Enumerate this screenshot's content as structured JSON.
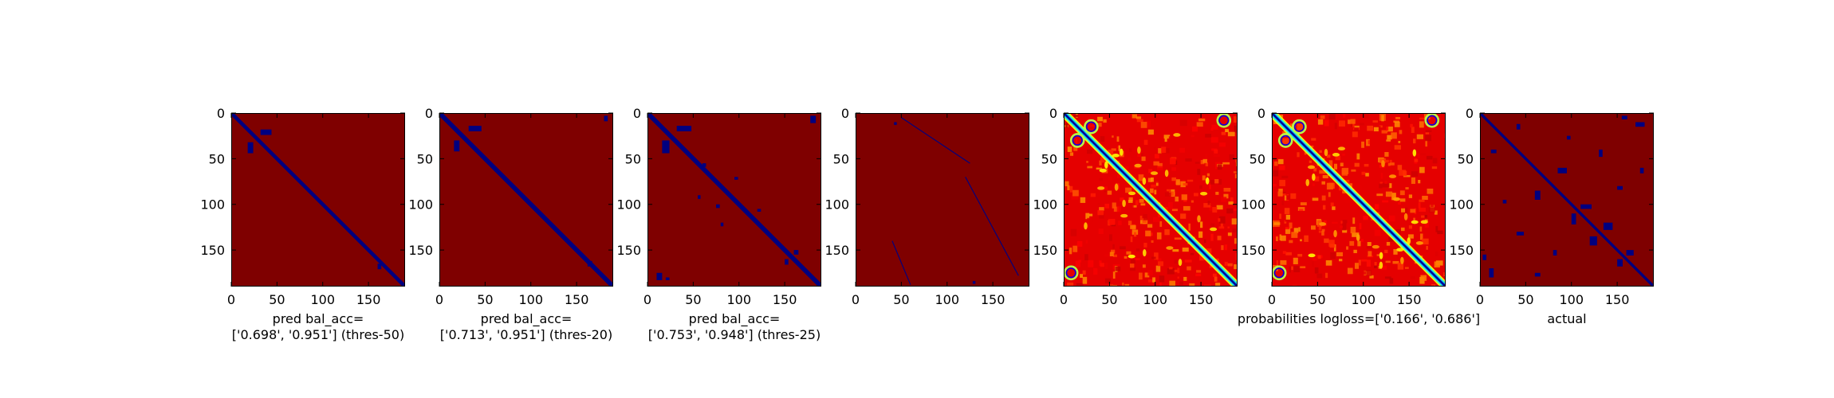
{
  "chart_data": [
    {
      "type": "heatmap",
      "variant": "binary-mask",
      "xlabel_lines": [
        "pred bal_acc=",
        "['0.698', '0.951'] (thres-50)"
      ],
      "xticks": [
        0,
        50,
        100,
        150
      ],
      "yticks": [
        0,
        50,
        100,
        150
      ],
      "xlim": [
        0,
        190
      ],
      "ylim": [
        190,
        0
      ],
      "background_color": "#7f0000",
      "mark_color": "#00007f",
      "diagonal_width": 4,
      "blobs": [
        {
          "i": 32,
          "j": 18,
          "w": 6,
          "h": 12
        },
        {
          "i": 18,
          "j": 32,
          "w": 12,
          "h": 6
        },
        {
          "i": 165,
          "j": 160,
          "w": 4,
          "h": 6
        }
      ]
    },
    {
      "type": "heatmap",
      "variant": "binary-mask",
      "xlabel_lines": [
        "pred bal_acc=",
        "['0.713', '0.951'] (thres-20)"
      ],
      "xticks": [
        0,
        50,
        100,
        150
      ],
      "yticks": [
        0,
        50,
        100,
        150
      ],
      "xlim": [
        0,
        190
      ],
      "ylim": [
        190,
        0
      ],
      "background_color": "#7f0000",
      "mark_color": "#00007f",
      "diagonal_width": 5,
      "blobs": [
        {
          "i": 30,
          "j": 16,
          "w": 6,
          "h": 12
        },
        {
          "i": 14,
          "j": 32,
          "w": 14,
          "h": 6
        },
        {
          "i": 3,
          "j": 180,
          "w": 4,
          "h": 6
        },
        {
          "i": 162,
          "j": 162,
          "w": 5,
          "h": 6
        }
      ]
    },
    {
      "type": "heatmap",
      "variant": "binary-mask",
      "xlabel_lines": [
        "pred bal_acc=",
        "['0.753', '0.948'] (thres-25)"
      ],
      "xticks": [
        0,
        50,
        100,
        150
      ],
      "yticks": [
        0,
        50,
        100,
        150
      ],
      "xlim": [
        0,
        190
      ],
      "ylim": [
        190,
        0
      ],
      "background_color": "#7f0000",
      "mark_color": "#00007f",
      "diagonal_width": 5,
      "blobs": [
        {
          "i": 30,
          "j": 16,
          "w": 8,
          "h": 14
        },
        {
          "i": 14,
          "j": 32,
          "w": 16,
          "h": 6
        },
        {
          "i": 3,
          "j": 178,
          "w": 6,
          "h": 8
        },
        {
          "i": 55,
          "j": 60,
          "w": 4,
          "h": 4
        },
        {
          "i": 70,
          "j": 95,
          "w": 4,
          "h": 3
        },
        {
          "i": 90,
          "j": 55,
          "w": 3,
          "h": 4
        },
        {
          "i": 100,
          "j": 75,
          "w": 4,
          "h": 4
        },
        {
          "i": 105,
          "j": 120,
          "w": 4,
          "h": 3
        },
        {
          "i": 120,
          "j": 80,
          "w": 3,
          "h": 4
        },
        {
          "i": 150,
          "j": 160,
          "w": 5,
          "h": 5
        },
        {
          "i": 160,
          "j": 150,
          "w": 4,
          "h": 6
        },
        {
          "i": 175,
          "j": 10,
          "w": 6,
          "h": 8
        },
        {
          "i": 180,
          "j": 20,
          "w": 4,
          "h": 3
        }
      ]
    },
    {
      "type": "heatmap",
      "variant": "binary-mask-sparse",
      "xlabel_lines": [],
      "xticks": [
        0,
        50,
        100,
        150
      ],
      "yticks": [
        0,
        50,
        100,
        150
      ],
      "xlim": [
        0,
        190
      ],
      "ylim": [
        190,
        0
      ],
      "background_color": "#7f0000",
      "mark_color": "#00007f",
      "diagonal_width": 0,
      "lines": [
        {
          "i1": 5,
          "j1": 50,
          "i2": 55,
          "j2": 125,
          "w": 1
        },
        {
          "i1": 70,
          "j1": 120,
          "i2": 178,
          "j2": 178,
          "w": 1
        },
        {
          "i1": 140,
          "j1": 40,
          "i2": 188,
          "j2": 60,
          "w": 1
        }
      ],
      "blobs": [
        {
          "i": 10,
          "j": 42,
          "w": 3,
          "h": 3
        },
        {
          "i": 184,
          "j": 128,
          "w": 3,
          "h": 3
        }
      ]
    },
    {
      "type": "heatmap",
      "variant": "probability",
      "xlabel_lines": [],
      "xticks": [
        0,
        50,
        100,
        150
      ],
      "yticks": [
        0,
        50,
        100,
        150
      ],
      "xlim": [
        0,
        190
      ],
      "ylim": [
        190,
        0
      ],
      "colormap": "jet",
      "diagonal_width": 3,
      "seed": 11
    },
    {
      "type": "heatmap",
      "variant": "probability",
      "xlabel_lines": [
        "probabilities logloss=['0.166', '0.686']"
      ],
      "xticks": [
        0,
        50,
        100,
        150
      ],
      "yticks": [
        0,
        50,
        100,
        150
      ],
      "xlim": [
        0,
        190
      ],
      "ylim": [
        190,
        0
      ],
      "colormap": "jet",
      "diagonal_width": 3,
      "seed": 23
    },
    {
      "type": "heatmap",
      "variant": "binary-mask",
      "xlabel_lines": [
        "actual"
      ],
      "xticks": [
        0,
        50,
        100,
        150
      ],
      "yticks": [
        0,
        50,
        100,
        150
      ],
      "xlim": [
        0,
        190
      ],
      "ylim": [
        190,
        0
      ],
      "background_color": "#7f0000",
      "mark_color": "#00007f",
      "diagonal_width": 3,
      "blobs": [
        {
          "i": 12,
          "j": 40,
          "w": 4,
          "h": 6
        },
        {
          "i": 40,
          "j": 12,
          "w": 6,
          "h": 4
        },
        {
          "i": 3,
          "j": 155,
          "w": 6,
          "h": 4
        },
        {
          "i": 155,
          "j": 3,
          "w": 4,
          "h": 6
        },
        {
          "i": 60,
          "j": 85,
          "w": 10,
          "h": 6
        },
        {
          "i": 85,
          "j": 60,
          "w": 6,
          "h": 10
        },
        {
          "i": 100,
          "j": 110,
          "w": 12,
          "h": 5
        },
        {
          "i": 110,
          "j": 100,
          "w": 5,
          "h": 12
        },
        {
          "i": 120,
          "j": 135,
          "w": 10,
          "h": 8
        },
        {
          "i": 135,
          "j": 120,
          "w": 8,
          "h": 10
        },
        {
          "i": 130,
          "j": 40,
          "w": 8,
          "h": 4
        },
        {
          "i": 40,
          "j": 130,
          "w": 4,
          "h": 8
        },
        {
          "i": 150,
          "j": 160,
          "w": 8,
          "h": 6
        },
        {
          "i": 160,
          "j": 150,
          "w": 6,
          "h": 8
        },
        {
          "i": 175,
          "j": 60,
          "w": 6,
          "h": 4
        },
        {
          "i": 60,
          "j": 175,
          "w": 4,
          "h": 6
        },
        {
          "i": 80,
          "j": 150,
          "w": 6,
          "h": 4
        },
        {
          "i": 150,
          "j": 80,
          "w": 4,
          "h": 6
        },
        {
          "i": 25,
          "j": 95,
          "w": 4,
          "h": 4
        },
        {
          "i": 95,
          "j": 25,
          "w": 4,
          "h": 4
        },
        {
          "i": 170,
          "j": 10,
          "w": 5,
          "h": 10
        },
        {
          "i": 10,
          "j": 170,
          "w": 10,
          "h": 5
        }
      ]
    }
  ]
}
